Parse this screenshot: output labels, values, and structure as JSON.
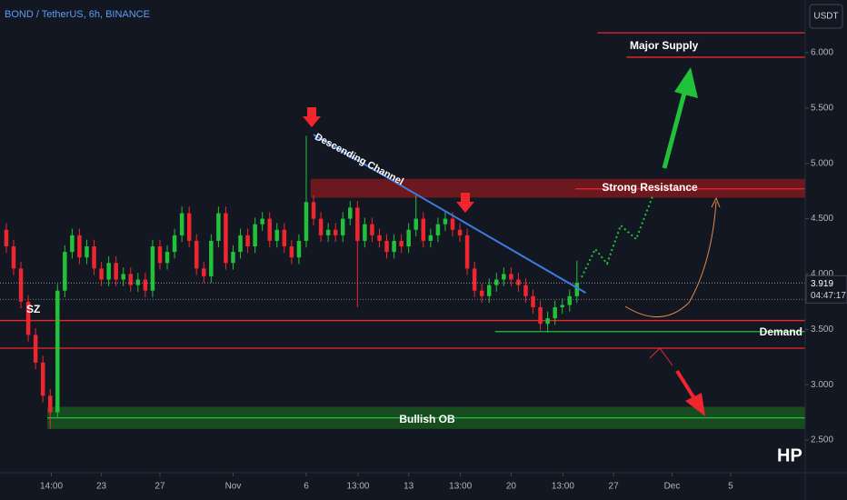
{
  "chart_data": {
    "type": "candlestick",
    "title": "BOND / TetherUS, 6h, BINANCE",
    "currency": "USDT",
    "countdown": "04:47:17",
    "colors": {
      "up": "#22c13a",
      "down": "#f0262f"
    },
    "xlim": [
      0.07,
      55.1
    ],
    "ylim": [
      2.204,
      6.477
    ],
    "xticks": [
      {
        "value": 3.58,
        "label": "14:00"
      },
      {
        "value": 7,
        "label": "23"
      },
      {
        "value": 11,
        "label": "27"
      },
      {
        "value": 16,
        "label": "Nov"
      },
      {
        "value": 21,
        "label": "6"
      },
      {
        "value": 24.54,
        "label": "13:00"
      },
      {
        "value": 28,
        "label": "13"
      },
      {
        "value": 31.54,
        "label": "13:00"
      },
      {
        "value": 35,
        "label": "20"
      },
      {
        "value": 38.54,
        "label": "13:00"
      },
      {
        "value": 42,
        "label": "27"
      },
      {
        "value": 46,
        "label": "Dec"
      },
      {
        "value": 50,
        "label": "5"
      }
    ],
    "yticks": [
      {
        "value": 2.5,
        "label": "2.500"
      },
      {
        "value": 3,
        "label": "3.000"
      },
      {
        "value": 3.5,
        "label": "3.500"
      },
      {
        "value": 4,
        "label": "4.000"
      },
      {
        "value": 4.5,
        "label": "4.500"
      },
      {
        "value": 5,
        "label": "5.000"
      },
      {
        "value": 5.5,
        "label": "5.500"
      },
      {
        "value": 6,
        "label": "6.000"
      }
    ],
    "x": [
      0.5,
      1,
      1.5,
      2,
      2.5,
      3,
      3.5,
      4,
      4.5,
      5,
      5.5,
      6,
      6.5,
      7,
      7.5,
      8,
      8.5,
      9,
      9.5,
      10,
      10.5,
      11,
      11.5,
      12,
      12.5,
      13,
      13.5,
      14,
      14.5,
      15,
      15.5,
      16,
      16.5,
      17,
      17.5,
      18,
      18.5,
      19,
      19.5,
      20,
      20.5,
      21,
      21.5,
      22,
      22.5,
      23,
      23.5,
      24,
      24.5,
      25,
      25.5,
      26,
      26.5,
      27,
      27.5,
      28,
      28.5,
      29,
      29.5,
      30,
      30.5,
      31,
      31.5,
      32,
      32.5,
      33,
      33.5,
      34,
      34.5,
      35,
      35.5,
      36,
      36.5,
      37,
      37.5,
      38,
      38.5,
      39,
      39.5
    ],
    "open": [
      4.4,
      4.25,
      4.05,
      3.75,
      3.45,
      3.2,
      2.9,
      2.75,
      3.85,
      4.2,
      4.35,
      4.15,
      4.25,
      4.05,
      3.95,
      4.1,
      3.95,
      4.0,
      3.9,
      3.95,
      3.85,
      4.25,
      4.1,
      4.2,
      4.35,
      4.55,
      4.3,
      4.05,
      3.98,
      4.3,
      4.55,
      4.1,
      4.2,
      4.35,
      4.25,
      4.45,
      4.5,
      4.3,
      4.4,
      4.25,
      4.15,
      4.3,
      4.65,
      4.5,
      4.35,
      4.4,
      4.35,
      4.5,
      4.6,
      4.3,
      4.45,
      4.35,
      4.3,
      4.2,
      4.3,
      4.25,
      4.4,
      4.5,
      4.3,
      4.35,
      4.45,
      4.5,
      4.4,
      4.35,
      4.05,
      3.85,
      3.8,
      3.9,
      3.95,
      4.0,
      3.95,
      3.9,
      3.8,
      3.7,
      3.55,
      3.6,
      3.7,
      3.72,
      3.8
    ],
    "high": [
      4.46,
      4.31,
      4.11,
      3.81,
      3.51,
      3.26,
      2.96,
      3.91,
      4.26,
      4.41,
      4.41,
      4.31,
      4.31,
      4.11,
      4.16,
      4.16,
      4.06,
      4.06,
      4.01,
      4.01,
      4.31,
      4.31,
      4.26,
      4.41,
      4.61,
      4.61,
      4.36,
      4.11,
      4.36,
      4.61,
      4.61,
      4.26,
      4.41,
      4.41,
      4.51,
      4.56,
      4.56,
      4.46,
      4.46,
      4.31,
      4.36,
      5.25,
      4.71,
      4.56,
      4.46,
      4.46,
      4.56,
      4.66,
      4.66,
      4.51,
      4.51,
      4.41,
      4.36,
      4.36,
      4.36,
      4.46,
      4.71,
      4.56,
      4.41,
      4.51,
      4.56,
      4.56,
      4.46,
      4.41,
      4.11,
      3.91,
      3.96,
      4.01,
      4.06,
      4.06,
      4.01,
      3.96,
      3.86,
      3.76,
      3.66,
      3.76,
      3.78,
      3.86,
      4.12
    ],
    "low": [
      4.19,
      3.99,
      3.69,
      3.39,
      3.14,
      2.84,
      2.6,
      2.7,
      3.79,
      4.14,
      4.09,
      4.09,
      3.99,
      3.89,
      3.89,
      3.89,
      3.89,
      3.84,
      3.84,
      3.79,
      3.79,
      4.04,
      4.04,
      4.14,
      4.29,
      4.24,
      3.99,
      3.92,
      3.92,
      4.24,
      4.04,
      4.04,
      4.14,
      4.19,
      4.19,
      4.39,
      4.24,
      4.24,
      4.19,
      4.09,
      4.09,
      4.24,
      4.44,
      4.29,
      4.29,
      4.29,
      4.29,
      4.44,
      3.7,
      4.24,
      4.29,
      4.24,
      4.14,
      4.14,
      4.19,
      4.19,
      4.34,
      4.24,
      4.24,
      4.29,
      4.39,
      4.34,
      4.29,
      3.99,
      3.79,
      3.74,
      3.74,
      3.84,
      3.89,
      3.89,
      3.84,
      3.74,
      3.64,
      3.49,
      3.47,
      3.54,
      3.64,
      3.66,
      3.74
    ],
    "close": [
      4.25,
      4.05,
      3.75,
      3.45,
      3.2,
      2.9,
      2.75,
      3.85,
      4.2,
      4.35,
      4.15,
      4.25,
      4.05,
      3.95,
      4.1,
      3.95,
      4.0,
      3.9,
      3.95,
      3.85,
      4.25,
      4.1,
      4.2,
      4.35,
      4.55,
      4.3,
      4.05,
      3.98,
      4.3,
      4.55,
      4.1,
      4.2,
      4.35,
      4.25,
      4.45,
      4.5,
      4.3,
      4.4,
      4.25,
      4.15,
      4.3,
      4.65,
      4.5,
      4.35,
      4.4,
      4.35,
      4.5,
      4.6,
      4.3,
      4.45,
      4.35,
      4.3,
      4.2,
      4.3,
      4.25,
      4.4,
      4.5,
      4.3,
      4.35,
      4.45,
      4.5,
      4.4,
      4.35,
      4.05,
      3.85,
      3.8,
      3.9,
      3.95,
      4.0,
      3.95,
      3.9,
      3.8,
      3.7,
      3.55,
      3.6,
      3.7,
      3.72,
      3.8,
      3.919
    ],
    "zones": [
      {
        "name": "Strong Resistance",
        "from": 21.3,
        "range": [
          4.69,
          4.86
        ],
        "color": "#8b1a1f"
      },
      {
        "name": "Bullish OB",
        "from": 3.3,
        "range": [
          2.6,
          2.8
        ],
        "color": "#1b5e20"
      }
    ],
    "levels": [
      {
        "from": 40.9,
        "value": 6.18,
        "color": "#f0262f"
      },
      {
        "from": 42.9,
        "value": 5.96,
        "color": "#f0262f"
      },
      {
        "from": 39.4,
        "value": 4.77,
        "color": "#f0262f"
      },
      {
        "from": 0.07,
        "value": 3.58,
        "color": "#f0262f"
      },
      {
        "from": 0.07,
        "value": 3.33,
        "color": "#f0262f"
      },
      {
        "from": 33.9,
        "value": 3.48,
        "color": "#22c13a"
      },
      {
        "from": 3.3,
        "value": 2.7,
        "color": "#22c13a"
      }
    ],
    "dotted_levels": [
      3.77
    ],
    "channel": {
      "name": "Descending Channel",
      "x": [
        21.5,
        40.1
      ],
      "y": [
        5.26,
        3.83
      ],
      "color": "#3d7be0"
    },
    "annotations": {
      "supply": "Major Supply",
      "demand": "Demand",
      "sz": "SZ",
      "hp": "HP"
    }
  }
}
